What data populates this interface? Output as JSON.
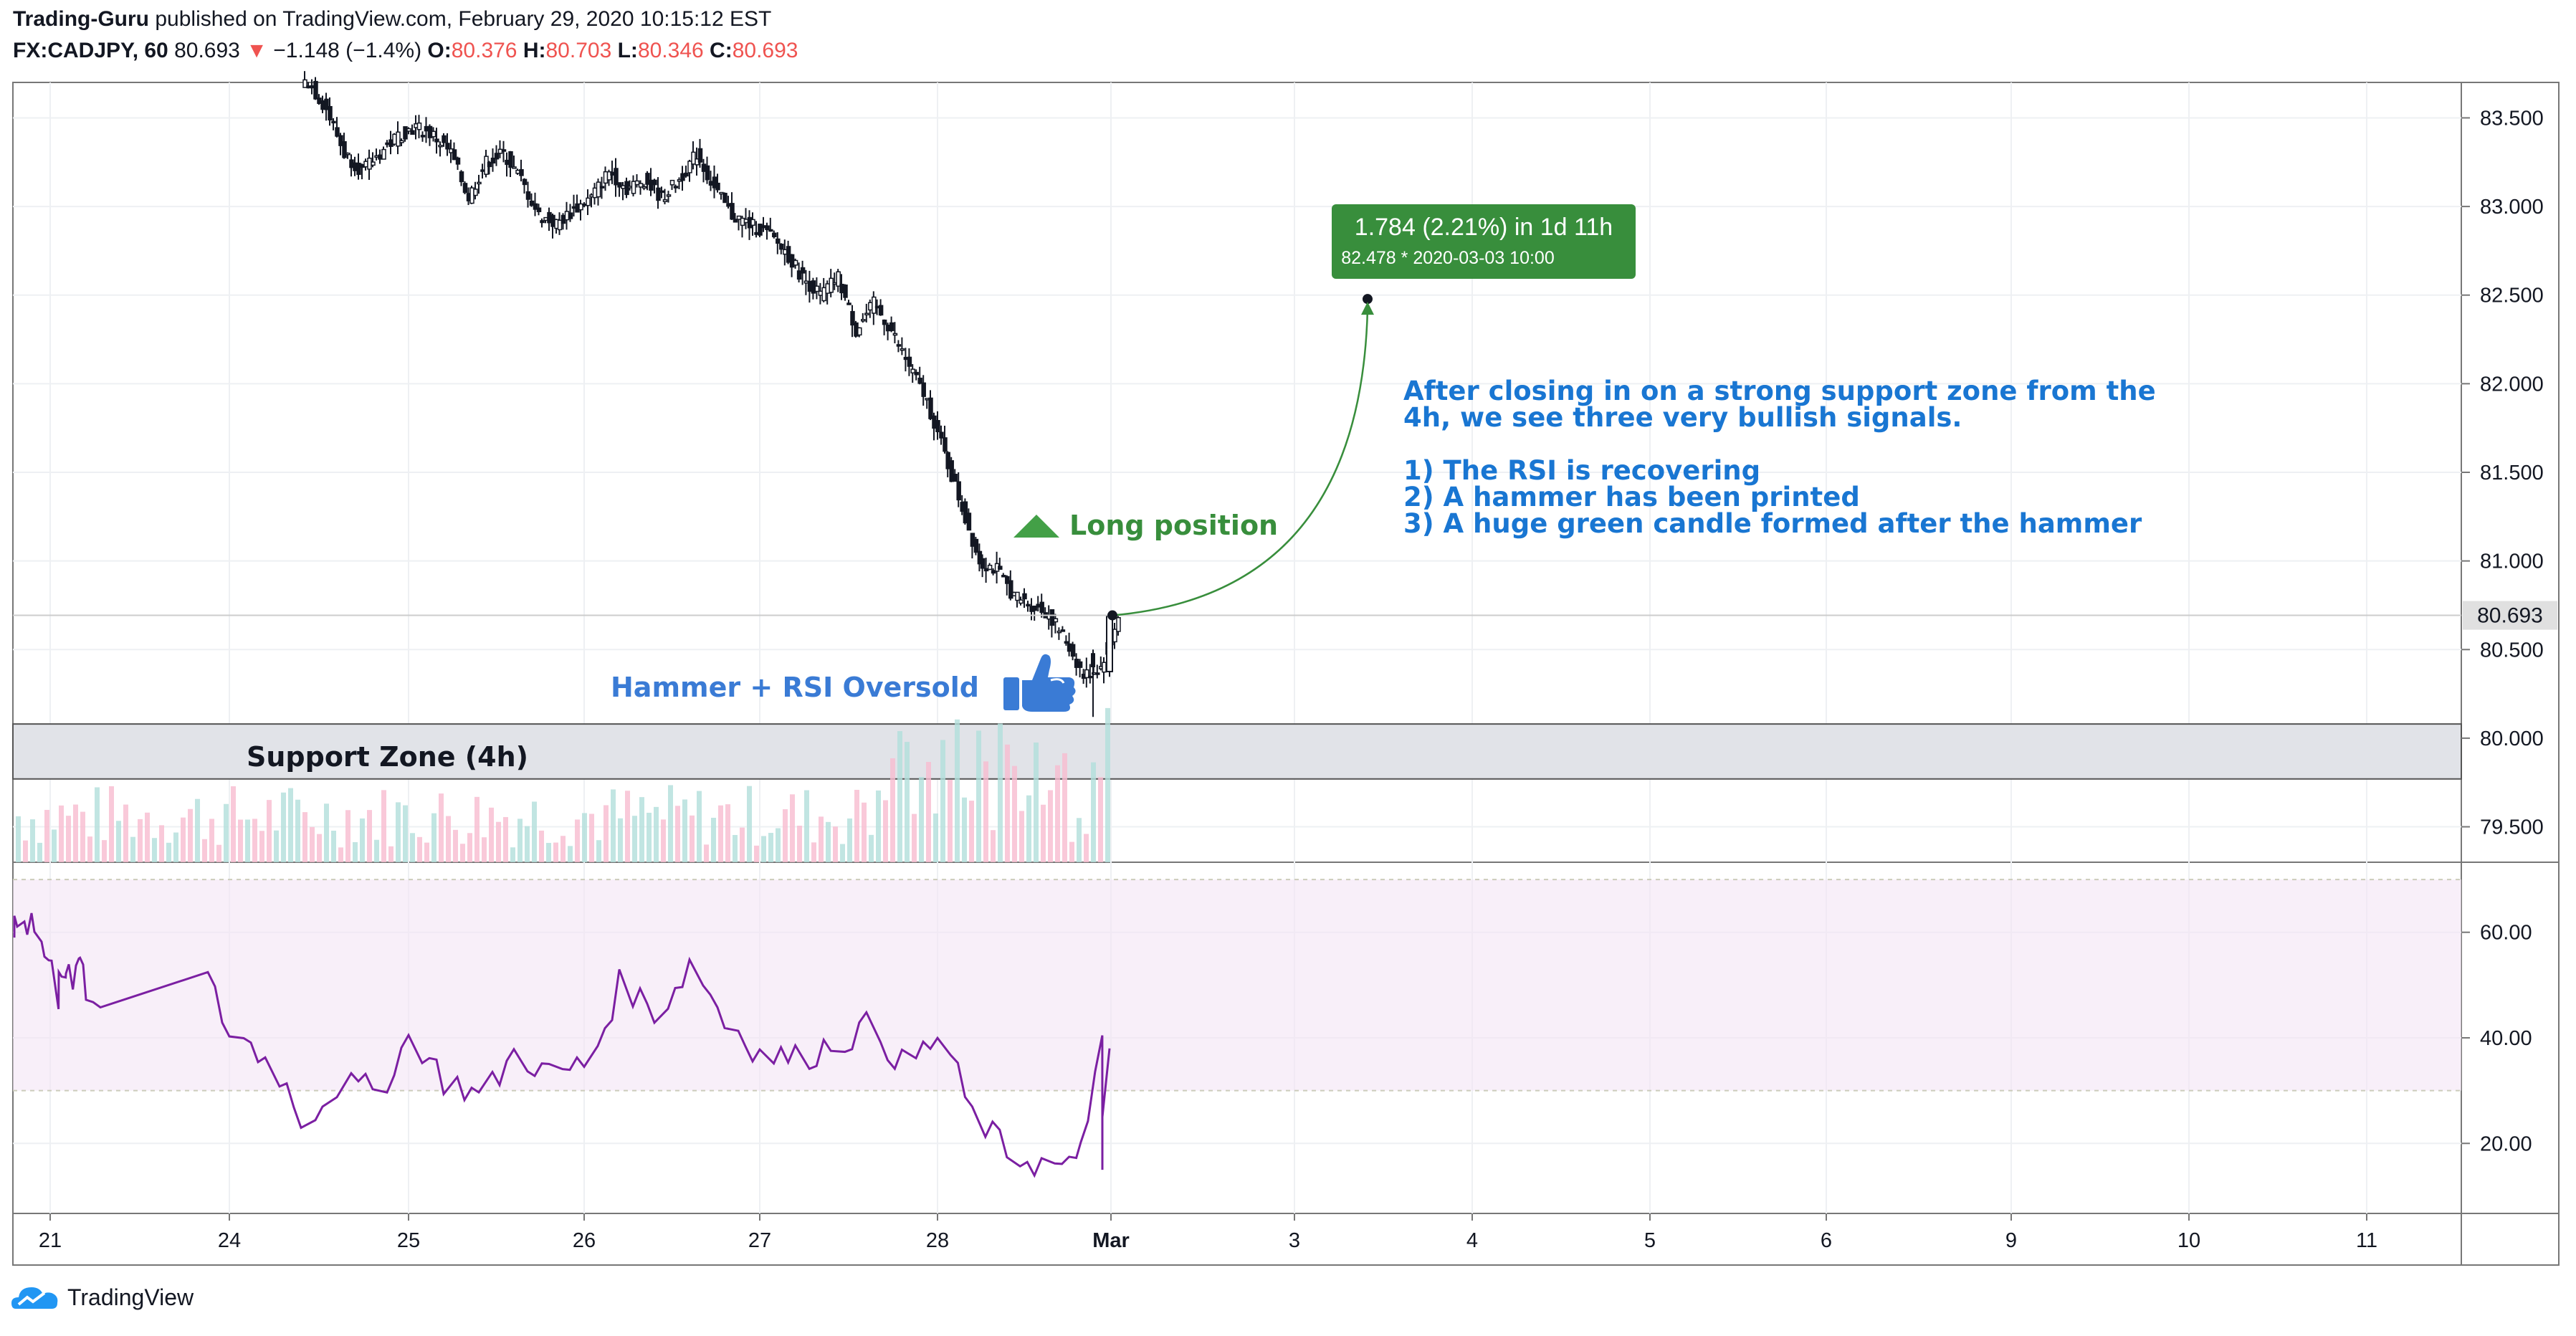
{
  "header": {
    "author": "Trading-Guru",
    "published_text": "published on TradingView.com, February 29, 2020 10:15:12 EST",
    "symbol": "FX:CADJPY, 60",
    "last": "80.693",
    "change_arrow": "▼",
    "change": "−1.148 (−1.4%)",
    "open_label": "O:",
    "open": "80.376",
    "high_label": "H:",
    "high": "80.703",
    "low_label": "L:",
    "low": "80.346",
    "close_label": "C:",
    "close": "80.693"
  },
  "footer": {
    "brand": "TradingView",
    "logo_icon": "tradingview-logo-icon"
  },
  "colors": {
    "up": "#26a69a",
    "down": "#ef5350",
    "rsi": "#7b1fa2",
    "note_blue": "#1976d2",
    "green": "#388e3c",
    "hammer_blue": "#3a7bd5"
  },
  "annotations": {
    "long_position": "Long position",
    "hammer_rsi": "Hammer + RSI Oversold",
    "support_zone": "Support Zone (4h)",
    "target_main": "1.784 (2.21%) in 1d 11h",
    "target_sub": "82.478 *   2020-03-03   10:00",
    "note_lines": [
      "After closing in on a strong support zone from the",
      "4h, we see three very bullish signals.",
      "",
      "1) The RSI is recovering",
      "2) A hammer has been printed",
      "3) A huge green candle formed after the hammer"
    ]
  },
  "chart_data": [
    {
      "type": "candlestick",
      "title": "FX:CADJPY, 60",
      "y_ticks": [
        "83.500",
        "83.000",
        "82.500",
        "82.000",
        "81.500",
        "81.000",
        "80.500",
        "80.000",
        "79.500"
      ],
      "x_ticks": [
        "21",
        "24",
        "25",
        "26",
        "27",
        "28",
        "Mar",
        "3",
        "4",
        "5",
        "6",
        "9",
        "10",
        "11"
      ],
      "ylim": [
        79.3,
        83.7
      ],
      "last_price": "80.693",
      "support_zone": [
        79.77,
        80.08
      ],
      "target_price": 82.478,
      "series": [
        {
          "name": "close",
          "days": [
            24.4,
            24.5,
            24.6,
            24.7,
            24.8,
            24.9,
            25.0,
            25.1,
            25.2,
            25.3,
            25.4,
            25.5,
            25.6,
            25.7,
            25.8,
            25.9,
            26.0,
            26.1,
            26.2,
            26.3,
            26.4,
            26.5,
            26.6,
            26.7,
            26.8,
            26.9,
            27.0,
            27.1,
            27.2,
            27.3,
            27.4,
            27.5,
            27.6,
            27.7,
            27.8,
            27.9,
            28.0,
            28.1,
            28.2,
            28.3,
            28.4,
            28.5,
            28.6,
            28.7,
            28.8,
            28.9,
            29.0
          ],
          "values": [
            83.7,
            83.55,
            83.3,
            83.2,
            83.3,
            83.4,
            83.45,
            83.4,
            83.3,
            83.05,
            83.25,
            83.3,
            83.15,
            82.95,
            82.9,
            82.98,
            83.05,
            83.2,
            83.1,
            83.15,
            83.05,
            83.15,
            83.3,
            83.1,
            82.95,
            82.9,
            82.85,
            82.75,
            82.6,
            82.5,
            82.6,
            82.3,
            82.45,
            82.3,
            82.1,
            81.9,
            81.6,
            81.3,
            81.0,
            80.95,
            80.8,
            80.75,
            80.7,
            80.55,
            80.35,
            80.4,
            80.69
          ]
        }
      ]
    },
    {
      "type": "line",
      "title": "RSI",
      "y_ticks": [
        "60.00",
        "40.00",
        "20.00"
      ],
      "ylim": [
        7,
        73
      ],
      "band": [
        30,
        70
      ],
      "series": [
        {
          "name": "RSI",
          "days": [
            20.8,
            21.0,
            21.2,
            21.4,
            21.6,
            21.8,
            22.0,
            24.0,
            24.2,
            24.4,
            24.6,
            24.8,
            25.0,
            25.2,
            25.4,
            25.6,
            25.8,
            26.0,
            26.2,
            26.4,
            26.6,
            26.8,
            27.0,
            27.2,
            27.4,
            27.6,
            27.8,
            28.0,
            28.2,
            28.4,
            28.6,
            28.8,
            28.95
          ],
          "values": [
            60,
            62,
            57,
            52,
            56,
            43,
            54,
            41,
            36,
            25,
            31,
            30,
            40,
            32,
            29,
            37,
            33,
            35,
            50,
            45,
            54,
            43,
            37,
            36,
            39,
            42,
            35,
            40,
            25,
            18,
            16,
            15,
            38
          ]
        }
      ]
    }
  ]
}
